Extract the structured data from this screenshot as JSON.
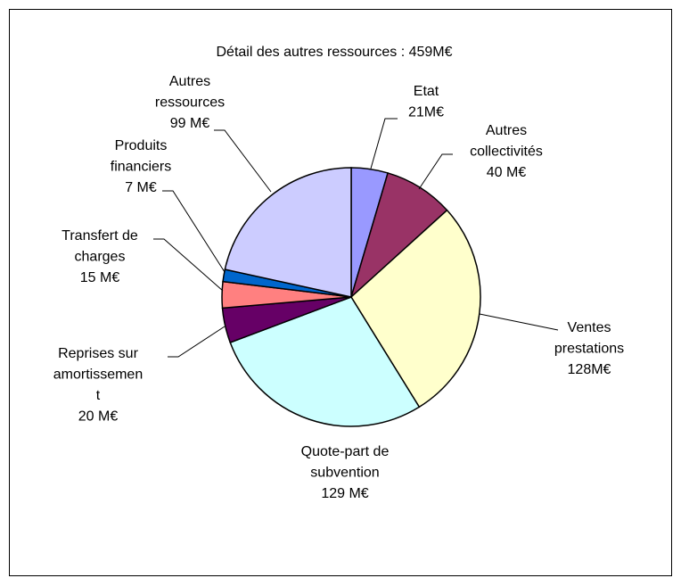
{
  "chart_data": {
    "type": "pie",
    "title": "Détail des autres ressources : 459M€",
    "categories": [
      "Etat",
      "Autres collectivités",
      "Ventes prestations",
      "Quote-part de subvention",
      "Reprises sur amortissement",
      "Transfert de charges",
      "Produits financiers",
      "Autres ressources"
    ],
    "values": [
      21,
      40,
      128,
      129,
      20,
      15,
      7,
      99
    ],
    "value_labels": [
      "21M€",
      "40 M€",
      "128M€",
      "129 M€",
      "20 M€",
      "15 M€",
      "7 M€",
      "99 M€"
    ],
    "colors": [
      "#9999ff",
      "#993366",
      "#ffffcc",
      "#ccffff",
      "#660066",
      "#ff8080",
      "#0066cc",
      "#ccccff"
    ]
  }
}
